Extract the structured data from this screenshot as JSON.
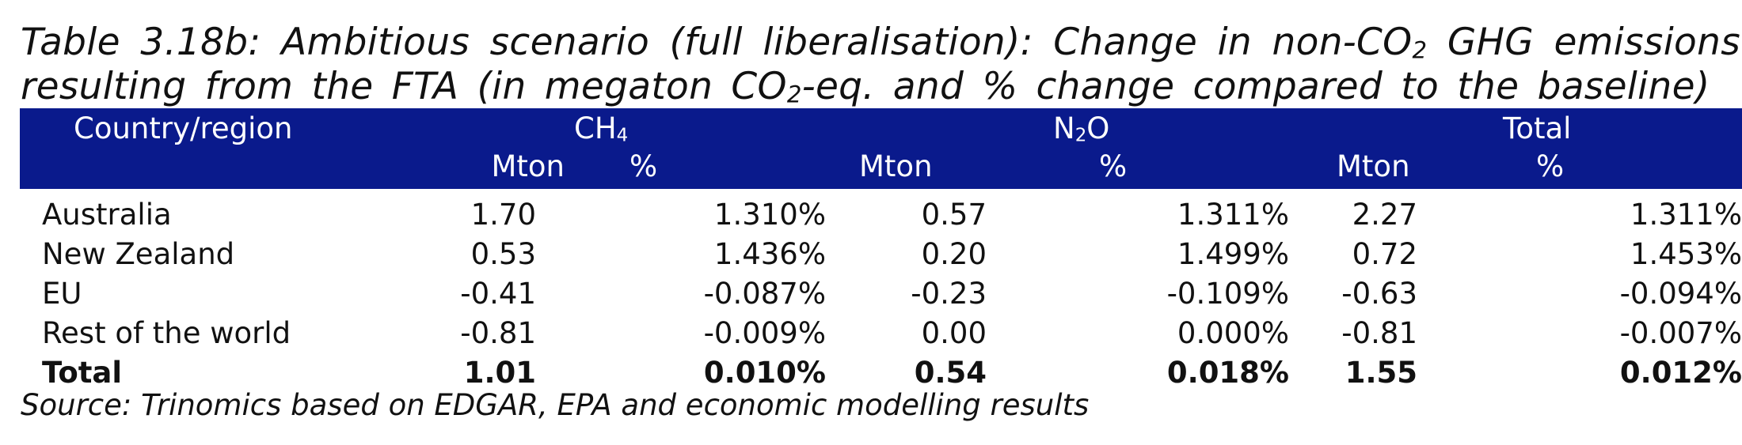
{
  "caption": {
    "line1_a": "Table 3.18b: Ambitious scenario (full liberalisation): Change in non-CO",
    "line1_sub": "2",
    "line1_b": " GHG emissions",
    "line2_a": "resulting from the FTA (in megaton CO",
    "line2_sub": "2",
    "line2_b": "-eq. and % change compared to the baseline)"
  },
  "table": {
    "header": {
      "country": "Country/region",
      "ch4_base": "CH",
      "ch4_sub": "4",
      "n2o_a": "N",
      "n2o_sub": "2",
      "n2o_b": "O",
      "total": "Total",
      "unit_mton": "Mton",
      "unit_pct": "%"
    },
    "rows": [
      {
        "name": "Australia",
        "ch4_mton": "1.70",
        "ch4_pct": "1.310%",
        "n2o_mton": "0.57",
        "n2o_pct": "1.311%",
        "total_mton": "2.27",
        "total_pct": "1.311%"
      },
      {
        "name": "New Zealand",
        "ch4_mton": "0.53",
        "ch4_pct": "1.436%",
        "n2o_mton": "0.20",
        "n2o_pct": "1.499%",
        "total_mton": "0.72",
        "total_pct": "1.453%"
      },
      {
        "name": "EU",
        "ch4_mton": "-0.41",
        "ch4_pct": "-0.087%",
        "n2o_mton": "-0.23",
        "n2o_pct": "-0.109%",
        "total_mton": "-0.63",
        "total_pct": "-0.094%"
      },
      {
        "name": "Rest of the world",
        "ch4_mton": "-0.81",
        "ch4_pct": "-0.009%",
        "n2o_mton": "0.00",
        "n2o_pct": "0.000%",
        "total_mton": "-0.81",
        "total_pct": "-0.007%"
      },
      {
        "name": "Total",
        "ch4_mton": "1.01",
        "ch4_pct": "0.010%",
        "n2o_mton": "0.54",
        "n2o_pct": "0.018%",
        "total_mton": "1.55",
        "total_pct": "0.012%"
      }
    ]
  },
  "source": "Source: Trinomics based on EDGAR, EPA and economic modelling results",
  "colors": {
    "header_bg": "#0a1a8c",
    "header_text": "#ffffff"
  }
}
